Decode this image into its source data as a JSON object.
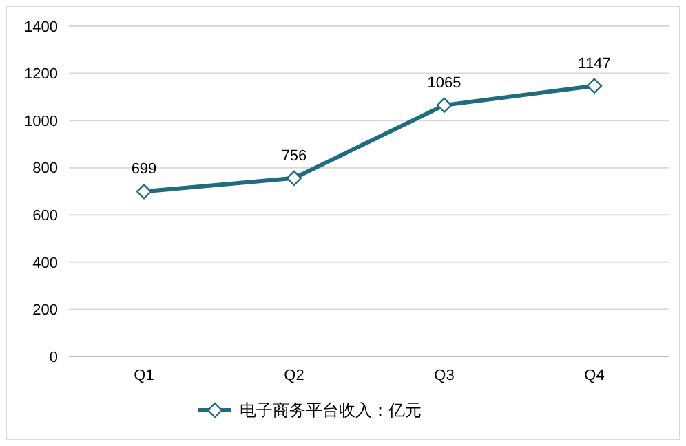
{
  "chart_data": {
    "type": "line",
    "categories": [
      "Q1",
      "Q2",
      "Q3",
      "Q4"
    ],
    "series": [
      {
        "name": "电子商务平台收入：亿元",
        "color": "#1f6b7f",
        "values": [
          699,
          756,
          1065,
          1147
        ]
      }
    ],
    "ylim": [
      0,
      1400
    ],
    "yticks": [
      0,
      200,
      400,
      600,
      800,
      1000,
      1200,
      1400
    ],
    "grid": "y",
    "legend": "bottom",
    "marker": "diamond",
    "data_labels": true
  }
}
